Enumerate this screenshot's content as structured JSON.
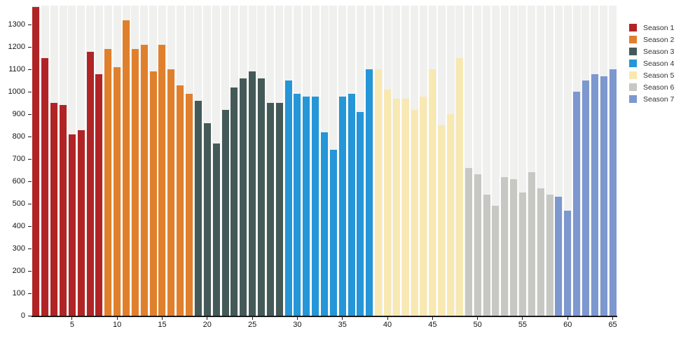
{
  "chart_data": {
    "type": "bar",
    "title": "",
    "xlabel": "",
    "ylabel": "",
    "x_range": [
      1,
      65
    ],
    "ylim": [
      0,
      1385
    ],
    "y_ticks": [
      0,
      100,
      200,
      300,
      400,
      500,
      600,
      700,
      800,
      900,
      1000,
      1100,
      1200,
      1300
    ],
    "x_ticks": [
      5,
      10,
      15,
      20,
      25,
      30,
      35,
      40,
      45,
      50,
      55,
      60,
      65
    ],
    "grid": "vertical background bands per bar, no gridlines",
    "legend_position": "outside-top-right",
    "background_band_color": "#f0f0ef",
    "axis_color": "#1a1a1a",
    "series": [
      {
        "name": "Season 1",
        "color": "#b02426",
        "start_x": 1,
        "values": [
          1380,
          1150,
          950,
          940,
          810,
          830,
          1180,
          1080
        ]
      },
      {
        "name": "Season 2",
        "color": "#e0802c",
        "start_x": 9,
        "values": [
          1190,
          1110,
          1320,
          1190,
          1210,
          1090,
          1210,
          1100,
          1030,
          990
        ]
      },
      {
        "name": "Season 3",
        "color": "#445a58",
        "start_x": 19,
        "values": [
          960,
          860,
          770,
          920,
          1020,
          1060,
          1090,
          1060,
          950,
          950
        ]
      },
      {
        "name": "Season 4",
        "color": "#2596d7",
        "start_x": 29,
        "values": [
          1050,
          990,
          980,
          980,
          820,
          740,
          980,
          990,
          910,
          1100
        ]
      },
      {
        "name": "Season 5",
        "color": "#f8e8b2",
        "start_x": 39,
        "values": [
          1100,
          1010,
          970,
          970,
          920,
          980,
          1100,
          850,
          900,
          1150
        ]
      },
      {
        "name": "Season 6",
        "color": "#c7c7c3",
        "start_x": 49,
        "values": [
          660,
          630,
          540,
          490,
          620,
          610,
          550,
          640,
          570,
          540
        ]
      },
      {
        "name": "Season 7",
        "color": "#7d97cf",
        "start_x": 59,
        "values": [
          530,
          470,
          1000,
          1050,
          1080,
          1070,
          1100
        ]
      }
    ],
    "legend_labels": [
      "Season 1",
      "Season 2",
      "Season 3",
      "Season 4",
      "Season 5",
      "Season 6",
      "Season 7"
    ]
  }
}
